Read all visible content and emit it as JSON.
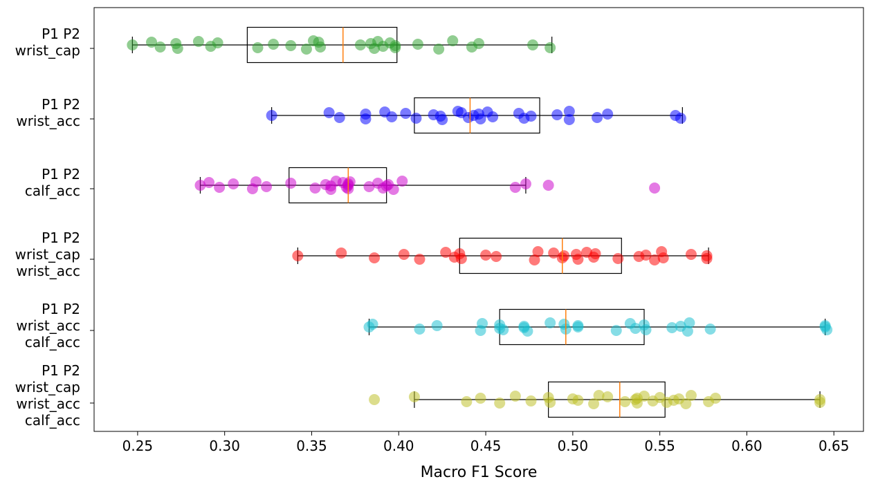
{
  "chart_data": {
    "type": "box-strip",
    "orientation": "horizontal",
    "title": "",
    "xlabel": "Macro F1 Score",
    "ylabel": "",
    "xlim": [
      0.225,
      0.667
    ],
    "xticks": [
      "0.25",
      "0.30",
      "0.35",
      "0.40",
      "0.45",
      "0.50",
      "0.55",
      "0.60",
      "0.65"
    ],
    "grid": false,
    "median_color": "#ff7f0e",
    "series": [
      {
        "label_lines": [
          "P1 P2",
          "wrist_cap"
        ],
        "color": "#2ca02c",
        "box": {
          "whisker_low": 0.247,
          "q1": 0.313,
          "median": 0.368,
          "q3": 0.399,
          "whisker_high": 0.488
        },
        "points": [
          0.247,
          0.258,
          0.263,
          0.272,
          0.273,
          0.285,
          0.292,
          0.296,
          0.319,
          0.328,
          0.338,
          0.347,
          0.351,
          0.354,
          0.355,
          0.378,
          0.384,
          0.386,
          0.388,
          0.391,
          0.395,
          0.398,
          0.398,
          0.411,
          0.423,
          0.431,
          0.442,
          0.446,
          0.477,
          0.487
        ]
      },
      {
        "label_lines": [
          "P1 P2",
          "wrist_acc"
        ],
        "color": "#0000ff",
        "box": {
          "whisker_low": 0.327,
          "q1": 0.409,
          "median": 0.441,
          "q3": 0.481,
          "whisker_high": 0.563
        },
        "points": [
          0.327,
          0.36,
          0.366,
          0.381,
          0.381,
          0.392,
          0.396,
          0.404,
          0.41,
          0.42,
          0.424,
          0.425,
          0.434,
          0.436,
          0.44,
          0.443,
          0.446,
          0.447,
          0.451,
          0.454,
          0.469,
          0.472,
          0.476,
          0.491,
          0.498,
          0.498,
          0.514,
          0.52,
          0.559,
          0.562
        ]
      },
      {
        "label_lines": [
          "P1 P2",
          "calf_acc"
        ],
        "color": "#cc00cc",
        "box": {
          "whisker_low": 0.286,
          "q1": 0.337,
          "median": 0.371,
          "q3": 0.393,
          "whisker_high": 0.473
        },
        "points": [
          0.286,
          0.291,
          0.297,
          0.305,
          0.316,
          0.318,
          0.324,
          0.338,
          0.352,
          0.358,
          0.361,
          0.361,
          0.364,
          0.368,
          0.37,
          0.371,
          0.371,
          0.371,
          0.372,
          0.383,
          0.388,
          0.391,
          0.393,
          0.394,
          0.397,
          0.402,
          0.467,
          0.473,
          0.486,
          0.547
        ]
      },
      {
        "label_lines": [
          "P1 P2",
          "wrist_cap",
          "wrist_acc"
        ],
        "color": "#ff0000",
        "box": {
          "whisker_low": 0.342,
          "q1": 0.435,
          "median": 0.494,
          "q3": 0.528,
          "whisker_high": 0.578
        },
        "points": [
          0.342,
          0.367,
          0.386,
          0.403,
          0.412,
          0.427,
          0.432,
          0.435,
          0.436,
          0.45,
          0.456,
          0.478,
          0.48,
          0.489,
          0.494,
          0.495,
          0.502,
          0.503,
          0.508,
          0.512,
          0.513,
          0.526,
          0.538,
          0.542,
          0.547,
          0.551,
          0.552,
          0.568,
          0.577,
          0.577
        ]
      },
      {
        "label_lines": [
          "P1 P2",
          "wrist_acc",
          "calf_acc"
        ],
        "color": "#17becf",
        "box": {
          "whisker_low": 0.383,
          "q1": 0.458,
          "median": 0.496,
          "q3": 0.541,
          "whisker_high": 0.645
        },
        "points": [
          0.383,
          0.385,
          0.412,
          0.422,
          0.447,
          0.448,
          0.458,
          0.458,
          0.46,
          0.472,
          0.472,
          0.474,
          0.487,
          0.495,
          0.496,
          0.503,
          0.503,
          0.525,
          0.533,
          0.536,
          0.541,
          0.542,
          0.557,
          0.562,
          0.566,
          0.567,
          0.579,
          0.645,
          0.645,
          0.646
        ]
      },
      {
        "label_lines": [
          "P1 P2",
          "wrist_cap",
          "wrist_acc",
          "calf_acc"
        ],
        "color": "#bcbd22",
        "box": {
          "whisker_low": 0.409,
          "q1": 0.486,
          "median": 0.527,
          "q3": 0.553,
          "whisker_high": 0.642
        },
        "points": [
          0.386,
          0.409,
          0.439,
          0.447,
          0.458,
          0.467,
          0.476,
          0.486,
          0.487,
          0.5,
          0.503,
          0.512,
          0.515,
          0.52,
          0.53,
          0.536,
          0.537,
          0.537,
          0.541,
          0.546,
          0.55,
          0.554,
          0.558,
          0.561,
          0.565,
          0.568,
          0.578,
          0.582,
          0.642,
          0.642
        ]
      }
    ]
  }
}
